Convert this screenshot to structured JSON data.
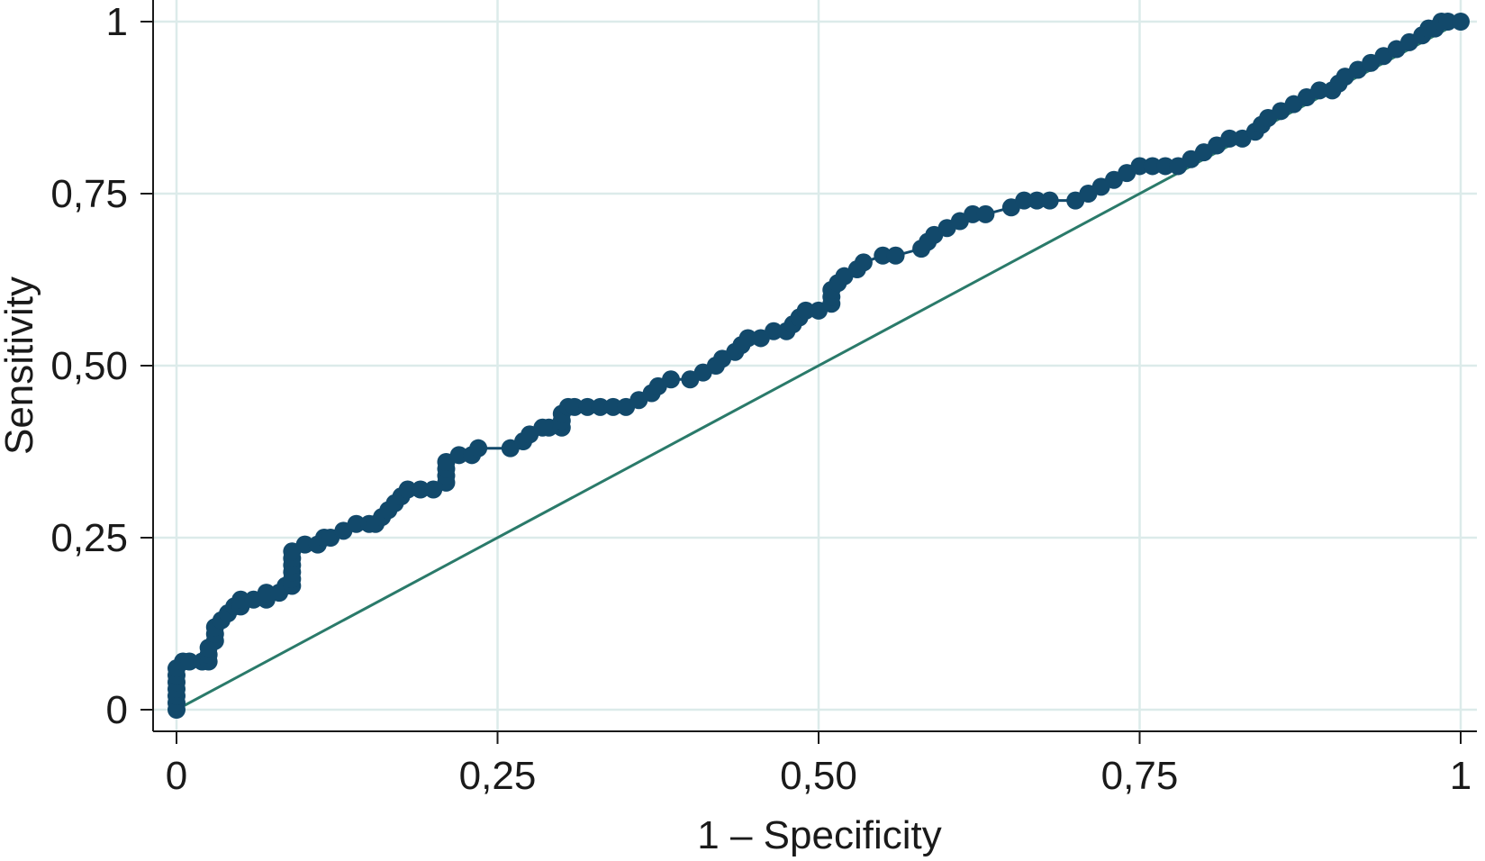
{
  "chart_data": {
    "type": "line",
    "xlabel": "1 – Specificity",
    "ylabel": "Sensitivity",
    "xlim": [
      0,
      1
    ],
    "ylim": [
      0,
      1
    ],
    "grid": true,
    "x_ticks": [
      0,
      0.25,
      0.5,
      0.75,
      1
    ],
    "y_ticks": [
      0,
      0.25,
      0.5,
      0.75,
      1
    ],
    "x_tick_labels": [
      "0",
      "0,25",
      "0,50",
      "0,75",
      "1"
    ],
    "y_tick_labels": [
      "0",
      "0,25",
      "0,50",
      "0,75",
      "1"
    ],
    "colors": {
      "roc": "#12496b",
      "reference": "#2a7a6a"
    },
    "series": [
      {
        "role": "roc-curve",
        "marker": "circle",
        "points": [
          [
            0.0,
            0.0
          ],
          [
            0.0,
            0.01
          ],
          [
            0.0,
            0.02
          ],
          [
            0.0,
            0.03
          ],
          [
            0.0,
            0.04
          ],
          [
            0.0,
            0.05
          ],
          [
            0.0,
            0.06
          ],
          [
            0.005,
            0.07
          ],
          [
            0.01,
            0.07
          ],
          [
            0.02,
            0.07
          ],
          [
            0.025,
            0.07
          ],
          [
            0.025,
            0.08
          ],
          [
            0.025,
            0.09
          ],
          [
            0.03,
            0.1
          ],
          [
            0.03,
            0.11
          ],
          [
            0.03,
            0.12
          ],
          [
            0.035,
            0.13
          ],
          [
            0.04,
            0.14
          ],
          [
            0.045,
            0.15
          ],
          [
            0.05,
            0.15
          ],
          [
            0.05,
            0.16
          ],
          [
            0.06,
            0.16
          ],
          [
            0.07,
            0.16
          ],
          [
            0.07,
            0.17
          ],
          [
            0.08,
            0.17
          ],
          [
            0.085,
            0.18
          ],
          [
            0.09,
            0.18
          ],
          [
            0.09,
            0.19
          ],
          [
            0.09,
            0.2
          ],
          [
            0.09,
            0.21
          ],
          [
            0.09,
            0.22
          ],
          [
            0.09,
            0.23
          ],
          [
            0.1,
            0.24
          ],
          [
            0.11,
            0.24
          ],
          [
            0.115,
            0.25
          ],
          [
            0.12,
            0.25
          ],
          [
            0.13,
            0.26
          ],
          [
            0.14,
            0.27
          ],
          [
            0.15,
            0.27
          ],
          [
            0.155,
            0.27
          ],
          [
            0.16,
            0.28
          ],
          [
            0.165,
            0.29
          ],
          [
            0.17,
            0.3
          ],
          [
            0.175,
            0.31
          ],
          [
            0.18,
            0.32
          ],
          [
            0.19,
            0.32
          ],
          [
            0.2,
            0.32
          ],
          [
            0.21,
            0.33
          ],
          [
            0.21,
            0.34
          ],
          [
            0.21,
            0.35
          ],
          [
            0.21,
            0.36
          ],
          [
            0.22,
            0.37
          ],
          [
            0.23,
            0.37
          ],
          [
            0.235,
            0.38
          ],
          [
            0.26,
            0.38
          ],
          [
            0.27,
            0.39
          ],
          [
            0.275,
            0.4
          ],
          [
            0.285,
            0.41
          ],
          [
            0.29,
            0.41
          ],
          [
            0.3,
            0.41
          ],
          [
            0.3,
            0.42
          ],
          [
            0.3,
            0.43
          ],
          [
            0.305,
            0.44
          ],
          [
            0.31,
            0.44
          ],
          [
            0.32,
            0.44
          ],
          [
            0.33,
            0.44
          ],
          [
            0.34,
            0.44
          ],
          [
            0.35,
            0.44
          ],
          [
            0.36,
            0.45
          ],
          [
            0.37,
            0.46
          ],
          [
            0.375,
            0.47
          ],
          [
            0.385,
            0.48
          ],
          [
            0.4,
            0.48
          ],
          [
            0.41,
            0.49
          ],
          [
            0.42,
            0.5
          ],
          [
            0.425,
            0.51
          ],
          [
            0.435,
            0.52
          ],
          [
            0.44,
            0.53
          ],
          [
            0.445,
            0.54
          ],
          [
            0.455,
            0.54
          ],
          [
            0.465,
            0.55
          ],
          [
            0.475,
            0.55
          ],
          [
            0.48,
            0.56
          ],
          [
            0.485,
            0.57
          ],
          [
            0.49,
            0.58
          ],
          [
            0.5,
            0.58
          ],
          [
            0.51,
            0.59
          ],
          [
            0.51,
            0.6
          ],
          [
            0.51,
            0.61
          ],
          [
            0.515,
            0.62
          ],
          [
            0.52,
            0.63
          ],
          [
            0.53,
            0.64
          ],
          [
            0.535,
            0.65
          ],
          [
            0.55,
            0.66
          ],
          [
            0.56,
            0.66
          ],
          [
            0.58,
            0.67
          ],
          [
            0.585,
            0.68
          ],
          [
            0.59,
            0.69
          ],
          [
            0.6,
            0.7
          ],
          [
            0.61,
            0.71
          ],
          [
            0.62,
            0.72
          ],
          [
            0.63,
            0.72
          ],
          [
            0.65,
            0.73
          ],
          [
            0.66,
            0.74
          ],
          [
            0.67,
            0.74
          ],
          [
            0.68,
            0.74
          ],
          [
            0.7,
            0.74
          ],
          [
            0.71,
            0.75
          ],
          [
            0.72,
            0.76
          ],
          [
            0.73,
            0.77
          ],
          [
            0.74,
            0.78
          ],
          [
            0.75,
            0.79
          ],
          [
            0.76,
            0.79
          ],
          [
            0.77,
            0.79
          ],
          [
            0.78,
            0.79
          ],
          [
            0.79,
            0.8
          ],
          [
            0.8,
            0.81
          ],
          [
            0.81,
            0.82
          ],
          [
            0.82,
            0.83
          ],
          [
            0.83,
            0.83
          ],
          [
            0.84,
            0.84
          ],
          [
            0.845,
            0.85
          ],
          [
            0.85,
            0.86
          ],
          [
            0.86,
            0.87
          ],
          [
            0.87,
            0.88
          ],
          [
            0.88,
            0.89
          ],
          [
            0.89,
            0.9
          ],
          [
            0.9,
            0.9
          ],
          [
            0.905,
            0.91
          ],
          [
            0.91,
            0.92
          ],
          [
            0.92,
            0.93
          ],
          [
            0.93,
            0.94
          ],
          [
            0.94,
            0.95
          ],
          [
            0.95,
            0.96
          ],
          [
            0.96,
            0.97
          ],
          [
            0.97,
            0.98
          ],
          [
            0.975,
            0.99
          ],
          [
            0.98,
            0.99
          ],
          [
            0.985,
            1.0
          ],
          [
            0.99,
            1.0
          ],
          [
            1.0,
            1.0
          ]
        ]
      },
      {
        "role": "reference-line",
        "points": [
          [
            0,
            0
          ],
          [
            1,
            1
          ]
        ]
      }
    ]
  }
}
